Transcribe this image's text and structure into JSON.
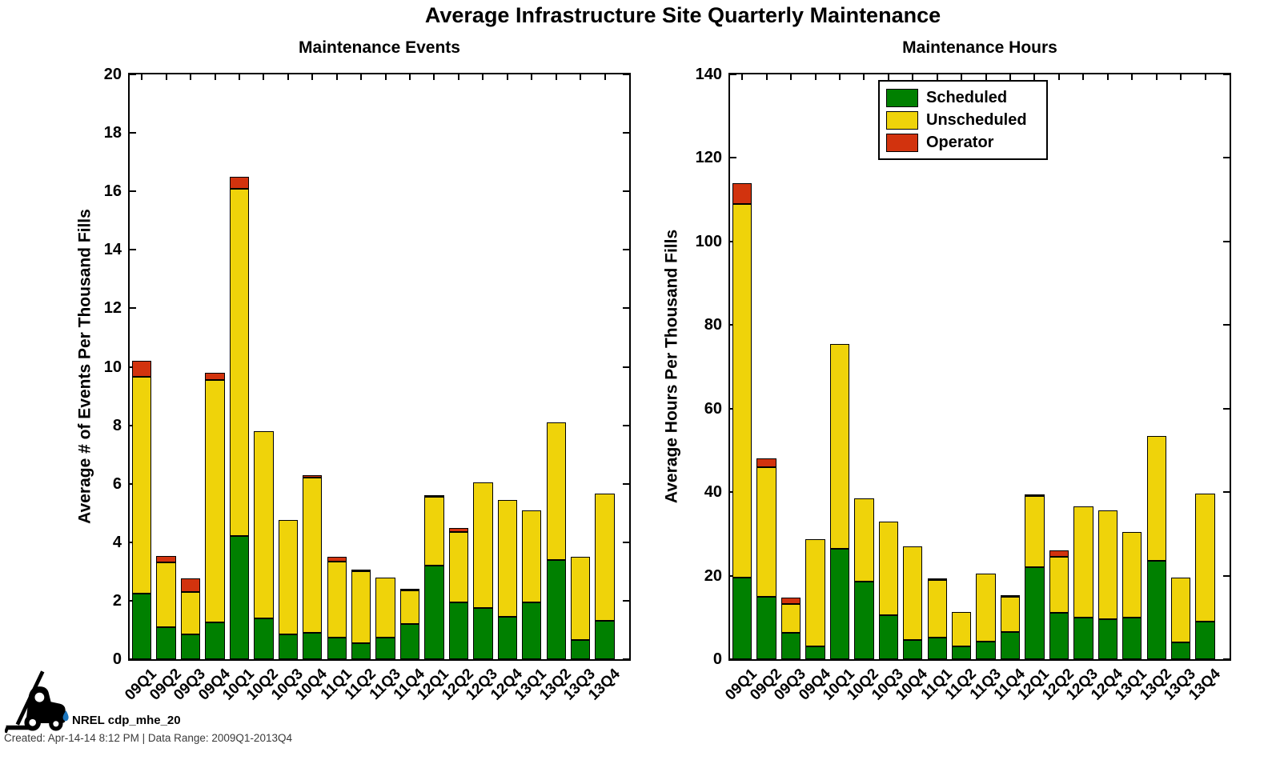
{
  "title": "Average Infrastructure Site Quarterly Maintenance",
  "legend": {
    "entries": [
      {
        "label": "Scheduled",
        "color": "#008000"
      },
      {
        "label": "Unscheduled",
        "color": "#EFD30A"
      },
      {
        "label": "Operator",
        "color": "#D2330E"
      }
    ]
  },
  "colors": {
    "scheduled": "#008000",
    "unscheduled": "#EFD30A",
    "operator": "#D2330E",
    "axis": "#000000",
    "background": "#ffffff",
    "droplet_blue": "#1B75BC"
  },
  "footer": {
    "brand": "NREL cdp_mhe_20",
    "created": "Created: Apr-14-14  8:12 PM | Data Range: 2009Q1-2013Q4"
  },
  "chart_data": [
    {
      "type": "bar",
      "stacked": true,
      "title": "Maintenance Events",
      "ylabel": "Average # of Events Per Thousand Fills",
      "ylim": [
        0,
        20
      ],
      "yticks": [
        0,
        2,
        4,
        6,
        8,
        10,
        12,
        14,
        16,
        18,
        20
      ],
      "x_tick_rotation": 45,
      "grid": false,
      "legend_visible": false,
      "categories": [
        "09Q1",
        "09Q2",
        "09Q3",
        "09Q4",
        "10Q1",
        "10Q2",
        "10Q3",
        "10Q4",
        "11Q1",
        "11Q2",
        "11Q3",
        "11Q4",
        "12Q1",
        "12Q2",
        "12Q3",
        "12Q4",
        "13Q1",
        "13Q2",
        "13Q3",
        "13Q4"
      ],
      "series": [
        {
          "name": "Scheduled",
          "color": "#008000",
          "values": [
            2.25,
            1.1,
            0.85,
            1.25,
            4.2,
            1.4,
            0.85,
            0.9,
            0.75,
            0.55,
            0.75,
            1.2,
            3.2,
            1.95,
            1.75,
            1.45,
            1.95,
            3.4,
            0.65,
            1.3
          ]
        },
        {
          "name": "Unscheduled",
          "color": "#EFD30A",
          "values": [
            7.4,
            2.2,
            1.45,
            8.3,
            11.9,
            6.4,
            3.9,
            5.3,
            2.6,
            2.45,
            2.05,
            1.15,
            2.35,
            2.4,
            4.3,
            4.0,
            3.15,
            4.7,
            2.85,
            4.35
          ]
        },
        {
          "name": "Operator",
          "color": "#D2330E",
          "values": [
            0.55,
            0.22,
            0.45,
            0.25,
            0.4,
            0,
            0,
            0.1,
            0.15,
            0.06,
            0,
            0.07,
            0.07,
            0.15,
            0,
            0,
            0,
            0,
            0,
            0
          ]
        }
      ]
    },
    {
      "type": "bar",
      "stacked": true,
      "title": "Maintenance Hours",
      "ylabel": "Average Hours Per Thousand Fills",
      "ylim": [
        0,
        140
      ],
      "yticks": [
        0,
        20,
        40,
        60,
        80,
        100,
        120,
        140
      ],
      "x_tick_rotation": 45,
      "grid": false,
      "legend_visible": true,
      "legend_position": "north",
      "categories": [
        "09Q1",
        "09Q2",
        "09Q3",
        "09Q4",
        "10Q1",
        "10Q2",
        "10Q3",
        "10Q4",
        "11Q1",
        "11Q2",
        "11Q3",
        "11Q4",
        "12Q1",
        "12Q2",
        "12Q3",
        "12Q4",
        "13Q1",
        "13Q2",
        "13Q3",
        "13Q4"
      ],
      "series": [
        {
          "name": "Scheduled",
          "color": "#008000",
          "values": [
            19.5,
            15.0,
            6.3,
            3.0,
            26.5,
            18.5,
            10.5,
            4.6,
            5.1,
            3.1,
            4.3,
            6.6,
            22.0,
            11.2,
            10.0,
            9.5,
            10.0,
            23.5,
            4.0,
            9.0
          ]
        },
        {
          "name": "Unscheduled",
          "color": "#EFD30A",
          "values": [
            89.5,
            31.0,
            7.0,
            25.8,
            49.0,
            20.0,
            22.5,
            22.4,
            13.8,
            8.2,
            16.1,
            8.4,
            17.0,
            13.3,
            26.5,
            26.2,
            20.5,
            30.0,
            15.5,
            30.7
          ]
        },
        {
          "name": "Operator",
          "color": "#D2330E",
          "values": [
            5.0,
            2.0,
            1.5,
            0,
            0,
            0,
            0,
            0,
            0.4,
            0,
            0,
            0.3,
            0.5,
            1.5,
            0,
            0,
            0,
            0,
            0,
            0
          ]
        }
      ]
    }
  ]
}
